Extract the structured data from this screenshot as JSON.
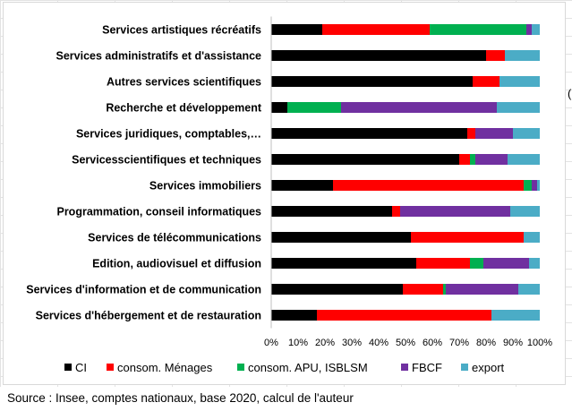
{
  "chart_data": {
    "type": "bar",
    "orientation": "horizontal",
    "stacked": "percent",
    "categories": [
      "Services artistiques récréatifs",
      "Services administratifs et d'assistance",
      "Autres services scientifiques",
      "Recherche et développement",
      "Services juridiques, comptables,…",
      "Servicesscientifiques et techniques",
      "Services immobiliers",
      "Programmation, conseil informatiques",
      "Services de télécommunications",
      "Edition, audiovisuel et diffusion",
      "Services d'information et de communication",
      "Services d'hébergement et de restauration"
    ],
    "series": [
      {
        "name": "CI",
        "color": "#000000",
        "values": [
          19,
          80,
          75,
          6,
          73,
          70,
          23,
          45,
          52,
          54,
          49,
          17
        ]
      },
      {
        "name": "consom. Ménages",
        "color": "#ff0000",
        "values": [
          40,
          7,
          10,
          0,
          3,
          4,
          71,
          3,
          42,
          20,
          15,
          65
        ]
      },
      {
        "name": "consom. APU, ISBLSM",
        "color": "#00b050",
        "values": [
          36,
          0,
          0,
          20,
          0,
          2,
          3,
          0,
          0,
          5,
          1,
          0
        ]
      },
      {
        "name": "FBCF",
        "color": "#7030a0",
        "values": [
          2,
          0,
          0,
          58,
          14,
          12,
          2,
          41,
          0,
          17,
          27,
          0
        ]
      },
      {
        "name": "export",
        "color": "#4bacc6",
        "values": [
          3,
          13,
          15,
          16,
          10,
          12,
          1,
          11,
          6,
          4,
          8,
          18
        ]
      }
    ],
    "x_ticks": [
      "0%",
      "10%",
      "20%",
      "30%",
      "40%",
      "50%",
      "60%",
      "70%",
      "80%",
      "90%",
      "100%"
    ],
    "xlim": [
      0,
      100
    ],
    "title": "",
    "xlabel": "",
    "ylabel": "",
    "grid": false,
    "legend_position": "bottom"
  },
  "source_text": "Source : Insee, comptes nationaux, base 2020, calcul de l'auteur",
  "cell_fragment": "("
}
